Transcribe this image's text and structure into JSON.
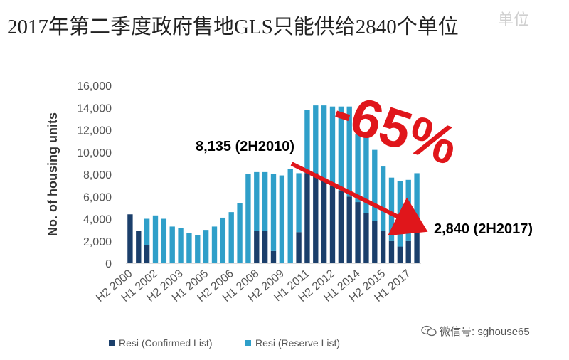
{
  "title": "2017年第二季度政府售地GLS只能供给2840个单位",
  "corner_mark": "单位",
  "watermark": {
    "icon": "wechat-icon",
    "text": "微信号: sghouse65"
  },
  "colors": {
    "confirmed": "#1b3f6b",
    "reserve": "#2f9fc9",
    "arrow": "#e0161b",
    "axis_text": "#555555",
    "grid": "#d9d9d9"
  },
  "chart_data": {
    "type": "bar",
    "stacked": true,
    "ylabel": "No. of housing units",
    "ylim": [
      0,
      16000
    ],
    "yticks": [
      0,
      2000,
      4000,
      6000,
      8000,
      10000,
      12000,
      14000,
      16000
    ],
    "ytick_labels": [
      "0",
      "2,000",
      "4,000",
      "6,000",
      "8,000",
      "10,000",
      "12,000",
      "14,000",
      "16,000"
    ],
    "grid": false,
    "legend_position": "bottom",
    "categories": [
      "H2 2000",
      "H1 2001",
      "H2 2001",
      "H1 2002",
      "H2 2002",
      "H1 2003",
      "H2 2003",
      "H1 2004",
      "H2 2004",
      "H1 2005",
      "H2 2005",
      "H1 2006",
      "H2 2006",
      "H1 2007",
      "H2 2007",
      "H1 2008",
      "H2 2008",
      "H1 2009",
      "H2 2009",
      "H1 2010",
      "H2 2010",
      "H1 2011",
      "H2 2011",
      "H1 2012",
      "H2 2012",
      "H1 2013",
      "H2 2013",
      "H1 2014",
      "H2 2014",
      "H1 2015",
      "H2 2015",
      "H1 2016",
      "H2 2016",
      "H1 2017",
      "H2 2017"
    ],
    "shown_tick_labels": [
      "H2 2000",
      "H1 2002",
      "H2 2003",
      "H1 2005",
      "H2 2006",
      "H1 2008",
      "H2 2009",
      "H1 2011",
      "H2 2012",
      "H1 2014",
      "H2 2015",
      "H1 2017"
    ],
    "series": [
      {
        "name": "Resi (Confirmed List)",
        "color": "#1b3f6b",
        "values": [
          4400,
          2900,
          1600,
          0,
          0,
          0,
          0,
          0,
          0,
          0,
          0,
          0,
          0,
          0,
          0,
          2900,
          2900,
          1100,
          0,
          0,
          2800,
          8100,
          8100,
          7500,
          7000,
          6500,
          6000,
          5500,
          4500,
          3800,
          2900,
          2000,
          1500,
          2000,
          2800
        ]
      },
      {
        "name": "Resi (Reserve List)",
        "color": "#2f9fc9",
        "values": [
          0,
          0,
          2400,
          4300,
          4000,
          3300,
          3200,
          2700,
          2500,
          3000,
          3300,
          4100,
          4600,
          5400,
          8000,
          5300,
          5300,
          6900,
          7900,
          8500,
          5300,
          5700,
          6100,
          6700,
          7100,
          7600,
          8100,
          6100,
          7100,
          6400,
          5800,
          5700,
          5900,
          5500,
          5300
        ]
      }
    ],
    "annotations": [
      {
        "text": "8,135 (2H2010)",
        "at": "H2 2010",
        "value": 8135
      },
      {
        "text": "2,840 (2H2017)",
        "at": "H2 2017",
        "value": 2840
      },
      {
        "text": "-65%",
        "style": "large red callout"
      }
    ]
  }
}
